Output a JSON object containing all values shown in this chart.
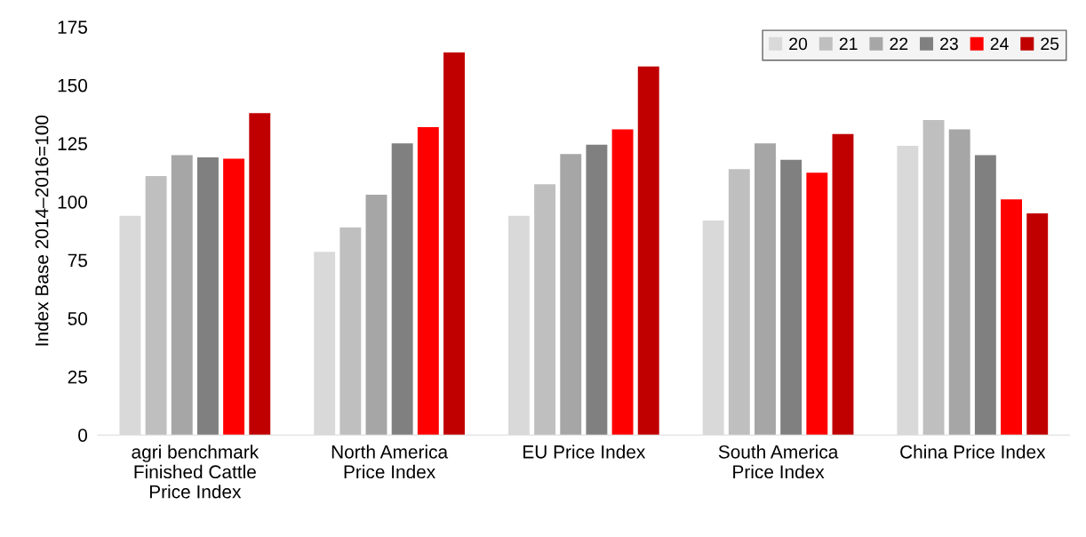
{
  "chart_data": {
    "type": "bar",
    "ylabel": "Index Base 2014–2016=100",
    "categories": [
      "agri benchmark\nFinished Cattle\nPrice Index",
      "North America\nPrice Index",
      "EU Price Index",
      "South America\nPrice Index",
      "China Price Index"
    ],
    "series": [
      {
        "name": "20",
        "color": "#d9d9d9",
        "values": [
          94,
          78.5,
          94,
          92,
          124
        ]
      },
      {
        "name": "21",
        "color": "#bfbfbf",
        "values": [
          111,
          89,
          107.5,
          114,
          135
        ]
      },
      {
        "name": "22",
        "color": "#a6a6a6",
        "values": [
          120,
          103,
          120.5,
          125,
          131
        ]
      },
      {
        "name": "23",
        "color": "#808080",
        "values": [
          119,
          125,
          124.5,
          118,
          120
        ]
      },
      {
        "name": "24",
        "color": "#ff0000",
        "values": [
          118.5,
          132,
          131,
          112.5,
          101
        ]
      },
      {
        "name": "25",
        "color": "#c00000",
        "values": [
          138,
          164,
          158,
          129,
          95
        ]
      }
    ],
    "ylim": [
      0,
      175
    ],
    "yticks": [
      0,
      25,
      50,
      75,
      100,
      125,
      150,
      175
    ],
    "grid": false,
    "legend": "top right"
  }
}
